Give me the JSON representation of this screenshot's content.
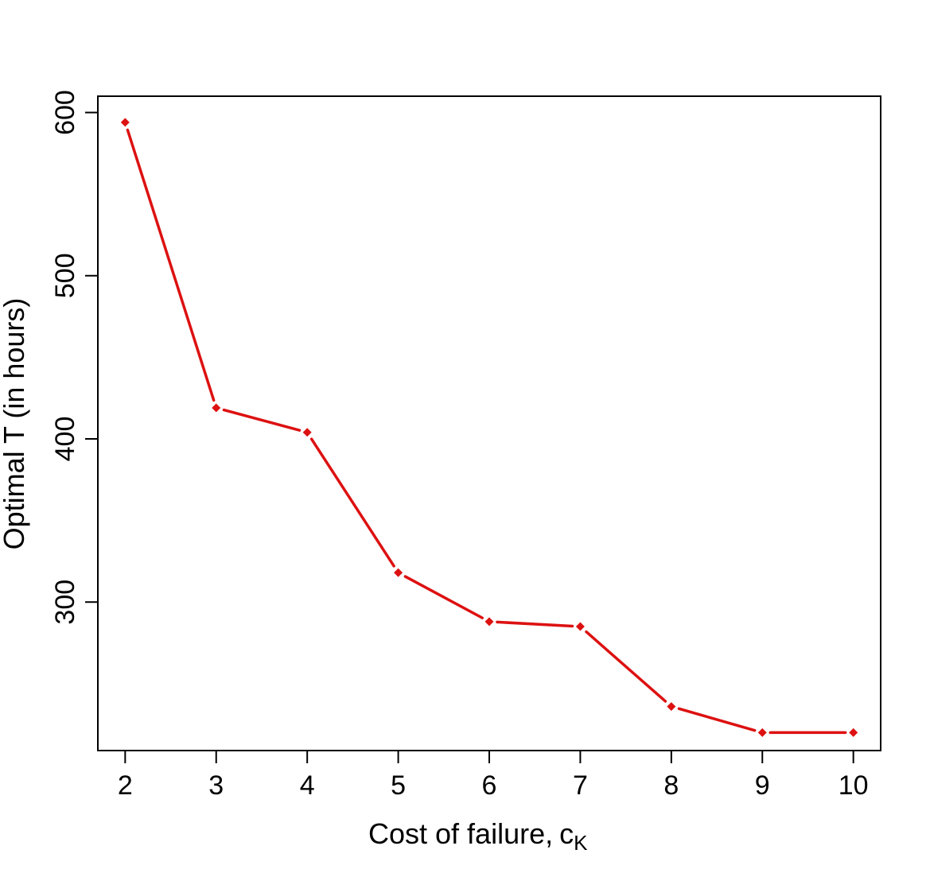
{
  "chart_data": {
    "type": "line",
    "title": "",
    "xlabel": "Cost of failure,",
    "xlabel_subscript_base": "c",
    "xlabel_subscript": "K",
    "ylabel": "Optimal T (in hours)",
    "x": [
      2,
      3,
      4,
      5,
      6,
      7,
      8,
      9,
      10
    ],
    "series": [
      {
        "values": [
          594,
          419,
          404,
          318,
          288,
          285,
          236,
          220,
          220
        ]
      }
    ],
    "xlim": [
      1.7,
      10.3
    ],
    "ylim": [
      209,
      610
    ],
    "xticks": [
      "2",
      "3",
      "4",
      "5",
      "6",
      "7",
      "8",
      "9",
      "10"
    ],
    "yticks": [
      "300",
      "400",
      "500",
      "600"
    ],
    "ytick_values": [
      300,
      400,
      500,
      600
    ],
    "grid": false,
    "legend": "none",
    "line_color": "#dd1111",
    "marker": "diamond"
  }
}
